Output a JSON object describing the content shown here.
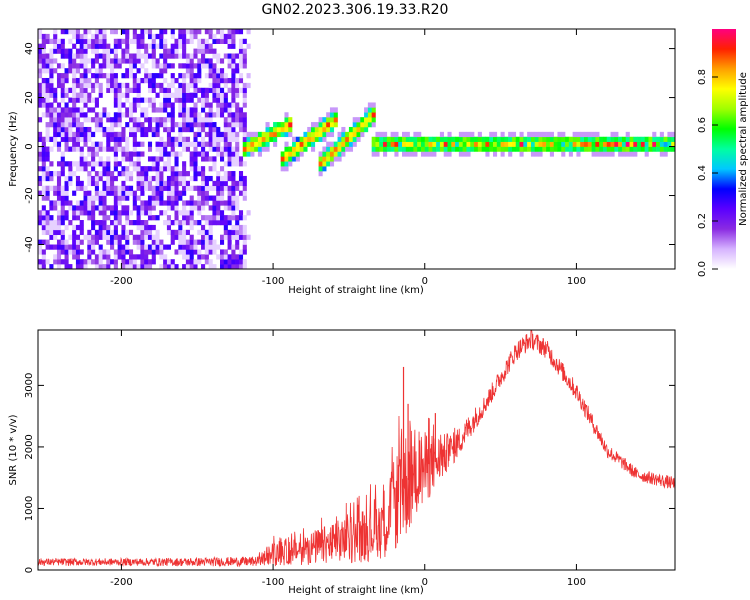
{
  "figure": {
    "title": "GN02.2023.306.19.33.R20"
  },
  "chart_data": [
    {
      "type": "heatmap",
      "title": "",
      "xlabel": "Height of straight line (km)",
      "ylabel": "Frequency (Hz)",
      "xlim": [
        -255,
        165
      ],
      "ylim": [
        -50,
        48
      ],
      "x_ticks": [
        -200,
        -100,
        0,
        100
      ],
      "y_ticks": [
        -40,
        -20,
        0,
        20,
        40
      ],
      "colorbar": {
        "label": "Normalized spectral amplitude",
        "range": [
          0.0,
          1.0
        ],
        "ticks": [
          0.0,
          0.2,
          0.4,
          0.6,
          0.8
        ],
        "colormap": [
          "#ffffff",
          "#d6b3ff",
          "#8a2be2",
          "#5a00ff",
          "#0000ff",
          "#00c8ff",
          "#00ffa0",
          "#00ff00",
          "#a0ff00",
          "#ffff00",
          "#ffa000",
          "#ff2000",
          "#ff0080"
        ]
      },
      "features": {
        "noise_region_x": [
          -255,
          -118
        ],
        "noise_amplitude": [
          0.1,
          0.3
        ],
        "signal_segments": [
          {
            "x": [
              -120,
              -90
            ],
            "freq": [
              -2,
              8
            ]
          },
          {
            "x": [
              -95,
              -60
            ],
            "freq": [
              -6,
              10
            ]
          },
          {
            "x": [
              -70,
              -35
            ],
            "freq": [
              -8,
              12
            ]
          },
          {
            "x": [
              -35,
              165
            ],
            "freq": [
              0,
              0
            ]
          }
        ],
        "signal_peak_amplitude": 1.0
      }
    },
    {
      "type": "line",
      "title": "",
      "xlabel": "Height of straight line (km)",
      "ylabel": "SNR (10 * v/v)",
      "xlim": [
        -255,
        165
      ],
      "ylim": [
        0,
        3900
      ],
      "x_ticks": [
        -200,
        -100,
        0,
        100
      ],
      "y_ticks": [
        0,
        1000,
        2000,
        3000
      ],
      "color": "#ee3333",
      "envelope": {
        "x": [
          -255,
          -200,
          -150,
          -110,
          -100,
          -80,
          -60,
          -40,
          -25,
          -15,
          -10,
          0,
          10,
          20,
          40,
          60,
          70,
          80,
          100,
          120,
          140,
          165
        ],
        "mean": [
          130,
          130,
          130,
          140,
          260,
          330,
          430,
          570,
          800,
          1300,
          1500,
          1650,
          1800,
          2000,
          2700,
          3550,
          3750,
          3600,
          2900,
          1950,
          1550,
          1400
        ],
        "jitter": [
          60,
          60,
          70,
          80,
          200,
          250,
          350,
          450,
          600,
          900,
          900,
          600,
          400,
          250,
          160,
          160,
          160,
          160,
          150,
          120,
          100,
          110
        ]
      },
      "spikes": [
        {
          "x": -14,
          "y": 3300
        },
        {
          "x": -11,
          "y": 2700
        },
        {
          "x": 7,
          "y": 2550
        },
        {
          "x": 12,
          "y": 1950
        }
      ]
    }
  ]
}
